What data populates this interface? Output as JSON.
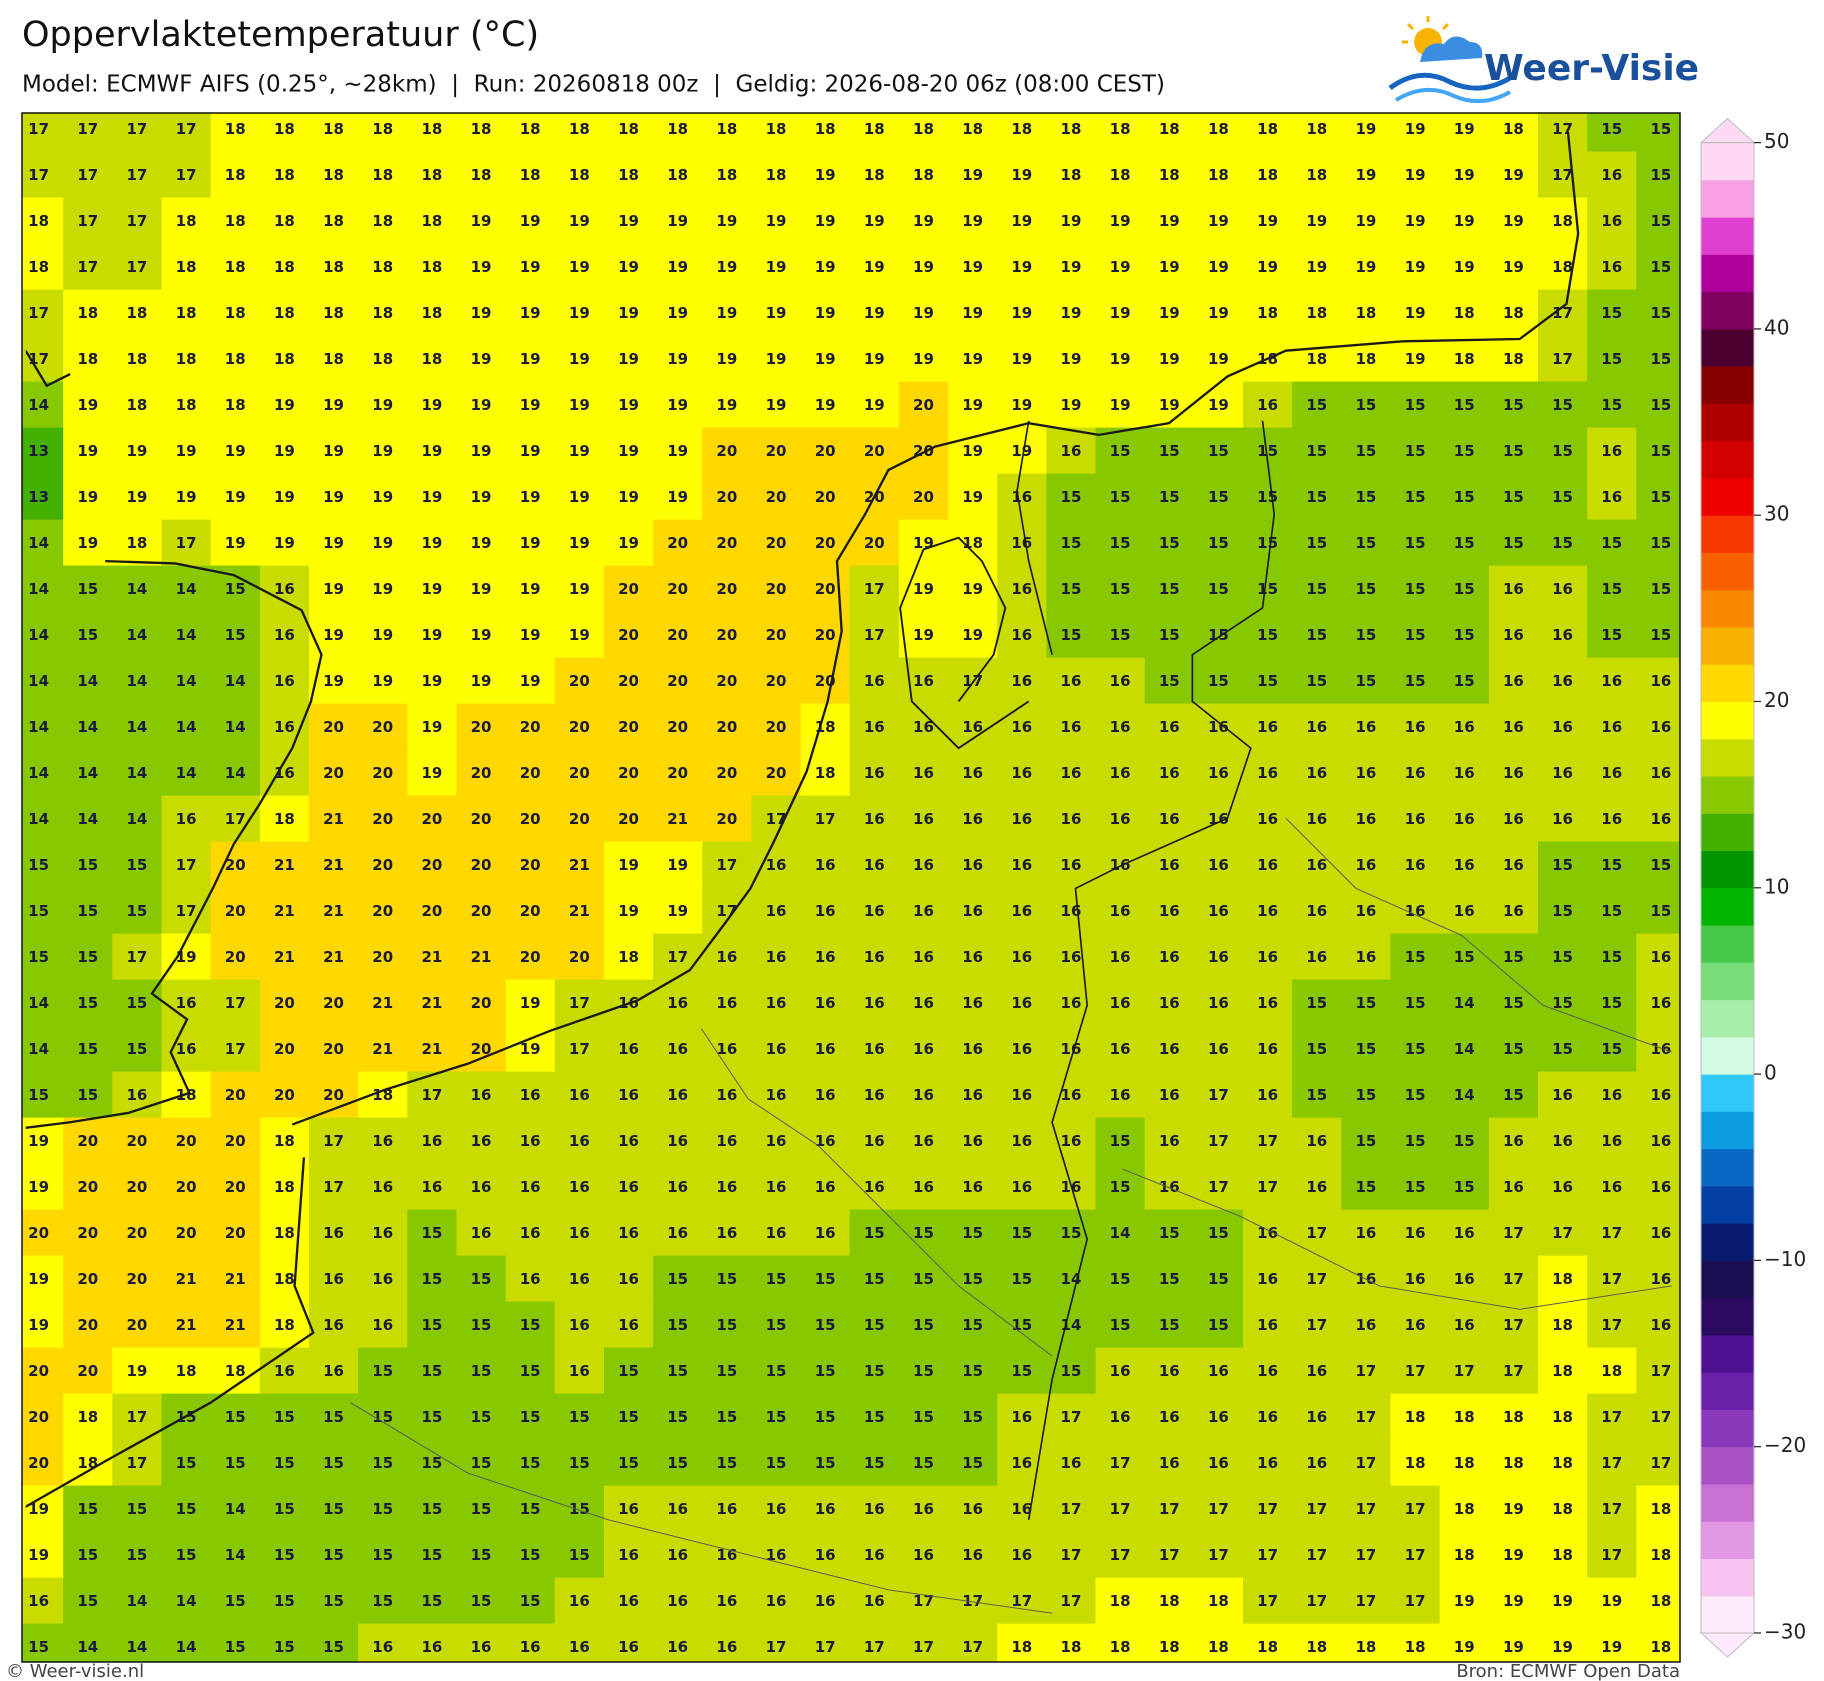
{
  "title": "Oppervlaktetemperatuur (°C)",
  "subtitle": "Model: ECMWF AIFS (0.25°, ~28km)  |  Run: 20260818 00z  |  Geldig: 2026-08-20 06z (08:00 CEST)",
  "logo": "Weer-Visie",
  "footer": {
    "left": "© Weer-visie.nl",
    "right": "Bron: ECMWF Open Data"
  },
  "colorbar": {
    "lim": [
      -30,
      50
    ],
    "ticks": [
      {
        "value": -30,
        "label": "−30"
      },
      {
        "value": -20,
        "label": "−20"
      },
      {
        "value": -10,
        "label": "−10"
      },
      0,
      10,
      20,
      30,
      40,
      50
    ],
    "colors": [
      "#fdeafa",
      "#f8c2f0",
      "#e098e4",
      "#c870d4",
      "#a850c4",
      "#8838b8",
      "#6a20a8",
      "#4c1090",
      "#2c0c60",
      "#1c0c50",
      "#081a70",
      "#0440a4",
      "#0868c4",
      "#0c9ce0",
      "#30c8f8",
      "#d4fce4",
      "#a8eeaa",
      "#78dc78",
      "#48c848",
      "#00b400",
      "#009600",
      "#44b000",
      "#88c800",
      "#c8dc00",
      "#ffff00",
      "#ffd800",
      "#f8b000",
      "#f88800",
      "#f86000",
      "#f83800",
      "#f00000",
      "#d40000",
      "#b00000",
      "#880000",
      "#4c0030",
      "#800060",
      "#b0009c",
      "#e040d0",
      "#f8a0e4",
      "#ffdaf4"
    ]
  },
  "map": {
    "values": [
      [
        17,
        17,
        17,
        17,
        18,
        18,
        18,
        18,
        18,
        18,
        18,
        18,
        18,
        18,
        18,
        18,
        18,
        18,
        18,
        18,
        18,
        18,
        18,
        18,
        18,
        18,
        18,
        19,
        19,
        19,
        18,
        17,
        15,
        15
      ],
      [
        17,
        17,
        17,
        17,
        18,
        18,
        18,
        18,
        18,
        18,
        18,
        18,
        18,
        18,
        18,
        18,
        19,
        18,
        18,
        19,
        19,
        18,
        18,
        18,
        18,
        18,
        18,
        19,
        19,
        19,
        19,
        17,
        16,
        15
      ],
      [
        18,
        17,
        17,
        18,
        18,
        18,
        18,
        18,
        18,
        19,
        19,
        19,
        19,
        19,
        19,
        19,
        19,
        19,
        19,
        19,
        19,
        19,
        19,
        19,
        19,
        19,
        19,
        19,
        19,
        19,
        19,
        18,
        16,
        15
      ],
      [
        18,
        17,
        17,
        18,
        18,
        18,
        18,
        18,
        18,
        19,
        19,
        19,
        19,
        19,
        19,
        19,
        19,
        19,
        19,
        19,
        19,
        19,
        19,
        19,
        19,
        19,
        19,
        19,
        19,
        19,
        19,
        18,
        16,
        15
      ],
      [
        17,
        18,
        18,
        18,
        18,
        18,
        18,
        18,
        18,
        19,
        19,
        19,
        19,
        19,
        19,
        19,
        19,
        19,
        19,
        19,
        19,
        19,
        19,
        19,
        19,
        18,
        18,
        18,
        19,
        18,
        18,
        17,
        15,
        15
      ],
      [
        17,
        18,
        18,
        18,
        18,
        18,
        18,
        18,
        18,
        19,
        19,
        19,
        19,
        19,
        19,
        19,
        19,
        19,
        19,
        19,
        19,
        19,
        19,
        19,
        19,
        18,
        18,
        18,
        19,
        18,
        18,
        17,
        15,
        15
      ],
      [
        14,
        19,
        18,
        18,
        18,
        19,
        19,
        19,
        19,
        19,
        19,
        19,
        19,
        19,
        19,
        19,
        19,
        19,
        20,
        19,
        19,
        19,
        19,
        19,
        19,
        16,
        15,
        15,
        15,
        15,
        15,
        15,
        15,
        15
      ],
      [
        13,
        19,
        19,
        19,
        19,
        19,
        19,
        19,
        19,
        19,
        19,
        19,
        19,
        19,
        20,
        20,
        20,
        20,
        20,
        19,
        19,
        16,
        15,
        15,
        15,
        15,
        15,
        15,
        15,
        15,
        15,
        15,
        16,
        15
      ],
      [
        13,
        19,
        19,
        19,
        19,
        19,
        19,
        19,
        19,
        19,
        19,
        19,
        19,
        19,
        20,
        20,
        20,
        20,
        20,
        19,
        16,
        15,
        15,
        15,
        15,
        15,
        15,
        15,
        15,
        15,
        15,
        15,
        16,
        15
      ],
      [
        14,
        19,
        18,
        17,
        19,
        19,
        19,
        19,
        19,
        19,
        19,
        19,
        19,
        20,
        20,
        20,
        20,
        20,
        19,
        18,
        16,
        15,
        15,
        15,
        15,
        15,
        15,
        15,
        15,
        15,
        15,
        15,
        15,
        15
      ],
      [
        14,
        15,
        14,
        14,
        15,
        16,
        19,
        19,
        19,
        19,
        19,
        19,
        20,
        20,
        20,
        20,
        20,
        17,
        19,
        19,
        16,
        15,
        15,
        15,
        15,
        15,
        15,
        15,
        15,
        15,
        16,
        16,
        15,
        15
      ],
      [
        14,
        15,
        14,
        14,
        15,
        16,
        19,
        19,
        19,
        19,
        19,
        19,
        20,
        20,
        20,
        20,
        20,
        17,
        19,
        19,
        16,
        15,
        15,
        15,
        15,
        15,
        15,
        15,
        15,
        15,
        16,
        16,
        15,
        15
      ],
      [
        14,
        14,
        14,
        14,
        14,
        16,
        19,
        19,
        19,
        19,
        19,
        20,
        20,
        20,
        20,
        20,
        20,
        16,
        16,
        17,
        16,
        16,
        16,
        15,
        15,
        15,
        15,
        15,
        15,
        15,
        16,
        16,
        16,
        16
      ],
      [
        14,
        14,
        14,
        14,
        14,
        16,
        20,
        20,
        19,
        20,
        20,
        20,
        20,
        20,
        20,
        20,
        18,
        16,
        16,
        16,
        16,
        16,
        16,
        16,
        16,
        16,
        16,
        16,
        16,
        16,
        16,
        16,
        16,
        16
      ],
      [
        14,
        14,
        14,
        14,
        14,
        16,
        20,
        20,
        19,
        20,
        20,
        20,
        20,
        20,
        20,
        20,
        18,
        16,
        16,
        16,
        16,
        16,
        16,
        16,
        16,
        16,
        16,
        16,
        16,
        16,
        16,
        16,
        16,
        16
      ],
      [
        14,
        14,
        14,
        16,
        17,
        18,
        21,
        20,
        20,
        20,
        20,
        20,
        20,
        21,
        20,
        17,
        17,
        16,
        16,
        16,
        16,
        16,
        16,
        16,
        16,
        16,
        16,
        16,
        16,
        16,
        16,
        16,
        16,
        16
      ],
      [
        15,
        15,
        15,
        17,
        20,
        21,
        21,
        20,
        20,
        20,
        20,
        21,
        19,
        19,
        17,
        16,
        16,
        16,
        16,
        16,
        16,
        16,
        16,
        16,
        16,
        16,
        16,
        16,
        16,
        16,
        16,
        15,
        15,
        15
      ],
      [
        15,
        15,
        15,
        17,
        20,
        21,
        21,
        20,
        20,
        20,
        20,
        21,
        19,
        19,
        17,
        16,
        16,
        16,
        16,
        16,
        16,
        16,
        16,
        16,
        16,
        16,
        16,
        16,
        16,
        16,
        16,
        15,
        15,
        15
      ],
      [
        15,
        15,
        17,
        19,
        20,
        21,
        21,
        20,
        21,
        21,
        20,
        20,
        18,
        17,
        16,
        16,
        16,
        16,
        16,
        16,
        16,
        16,
        16,
        16,
        16,
        16,
        16,
        16,
        15,
        15,
        15,
        15,
        15,
        16
      ],
      [
        14,
        15,
        15,
        16,
        17,
        20,
        20,
        21,
        21,
        20,
        19,
        17,
        16,
        16,
        16,
        16,
        16,
        16,
        16,
        16,
        16,
        16,
        16,
        16,
        16,
        16,
        15,
        15,
        15,
        14,
        15,
        15,
        15,
        16
      ],
      [
        14,
        15,
        15,
        16,
        17,
        20,
        20,
        21,
        21,
        20,
        19,
        17,
        16,
        16,
        16,
        16,
        16,
        16,
        16,
        16,
        16,
        16,
        16,
        16,
        16,
        16,
        15,
        15,
        15,
        14,
        15,
        15,
        15,
        16
      ],
      [
        15,
        15,
        16,
        18,
        20,
        20,
        20,
        18,
        17,
        16,
        16,
        16,
        16,
        16,
        16,
        16,
        16,
        16,
        16,
        16,
        16,
        16,
        16,
        16,
        17,
        16,
        15,
        15,
        15,
        14,
        15,
        16,
        16,
        16
      ],
      [
        19,
        20,
        20,
        20,
        20,
        18,
        17,
        16,
        16,
        16,
        16,
        16,
        16,
        16,
        16,
        16,
        16,
        16,
        16,
        16,
        16,
        16,
        15,
        16,
        17,
        17,
        16,
        15,
        15,
        15,
        16,
        16,
        16,
        16
      ],
      [
        19,
        20,
        20,
        20,
        20,
        18,
        17,
        16,
        16,
        16,
        16,
        16,
        16,
        16,
        16,
        16,
        16,
        16,
        16,
        16,
        16,
        16,
        15,
        16,
        17,
        17,
        16,
        15,
        15,
        15,
        16,
        16,
        16,
        16
      ],
      [
        20,
        20,
        20,
        20,
        20,
        18,
        16,
        16,
        15,
        16,
        16,
        16,
        16,
        16,
        16,
        16,
        16,
        15,
        15,
        15,
        15,
        15,
        14,
        15,
        15,
        16,
        17,
        16,
        16,
        16,
        17,
        17,
        17,
        16
      ],
      [
        19,
        20,
        20,
        21,
        21,
        18,
        16,
        16,
        15,
        15,
        16,
        16,
        16,
        15,
        15,
        15,
        15,
        15,
        15,
        15,
        15,
        14,
        15,
        15,
        15,
        16,
        17,
        16,
        16,
        16,
        17,
        18,
        17,
        16
      ],
      [
        19,
        20,
        20,
        21,
        21,
        18,
        16,
        16,
        15,
        15,
        15,
        16,
        16,
        15,
        15,
        15,
        15,
        15,
        15,
        15,
        15,
        14,
        15,
        15,
        15,
        16,
        17,
        16,
        16,
        16,
        17,
        18,
        17,
        16
      ],
      [
        20,
        20,
        19,
        18,
        18,
        16,
        16,
        15,
        15,
        15,
        15,
        16,
        15,
        15,
        15,
        15,
        15,
        15,
        15,
        15,
        15,
        15,
        16,
        16,
        16,
        16,
        16,
        17,
        17,
        17,
        17,
        18,
        18,
        17
      ],
      [
        20,
        18,
        17,
        15,
        15,
        15,
        15,
        15,
        15,
        15,
        15,
        15,
        15,
        15,
        15,
        15,
        15,
        15,
        15,
        15,
        16,
        17,
        16,
        16,
        16,
        16,
        16,
        17,
        18,
        18,
        18,
        18,
        17,
        17
      ],
      [
        20,
        18,
        17,
        15,
        15,
        15,
        15,
        15,
        15,
        15,
        15,
        15,
        15,
        15,
        15,
        15,
        15,
        15,
        15,
        15,
        16,
        16,
        17,
        16,
        16,
        16,
        16,
        17,
        18,
        18,
        18,
        18,
        17,
        17
      ],
      [
        19,
        15,
        15,
        15,
        14,
        15,
        15,
        15,
        15,
        15,
        15,
        15,
        16,
        16,
        16,
        16,
        16,
        16,
        16,
        16,
        16,
        17,
        17,
        17,
        17,
        17,
        17,
        17,
        17,
        18,
        19,
        18,
        17,
        18
      ],
      [
        19,
        15,
        15,
        15,
        14,
        15,
        15,
        15,
        15,
        15,
        15,
        15,
        16,
        16,
        16,
        16,
        16,
        16,
        16,
        16,
        16,
        17,
        17,
        17,
        17,
        17,
        17,
        17,
        17,
        18,
        19,
        18,
        17,
        18
      ],
      [
        16,
        15,
        14,
        14,
        15,
        15,
        15,
        15,
        15,
        15,
        15,
        16,
        16,
        16,
        16,
        16,
        16,
        16,
        17,
        17,
        17,
        17,
        18,
        18,
        18,
        17,
        17,
        17,
        17,
        19,
        19,
        19,
        19,
        18
      ],
      [
        15,
        14,
        14,
        14,
        15,
        15,
        15,
        16,
        16,
        16,
        16,
        16,
        16,
        16,
        16,
        17,
        17,
        17,
        17,
        17,
        18,
        18,
        18,
        18,
        18,
        18,
        18,
        18,
        18,
        19,
        19,
        19,
        19,
        18
      ]
    ]
  }
}
